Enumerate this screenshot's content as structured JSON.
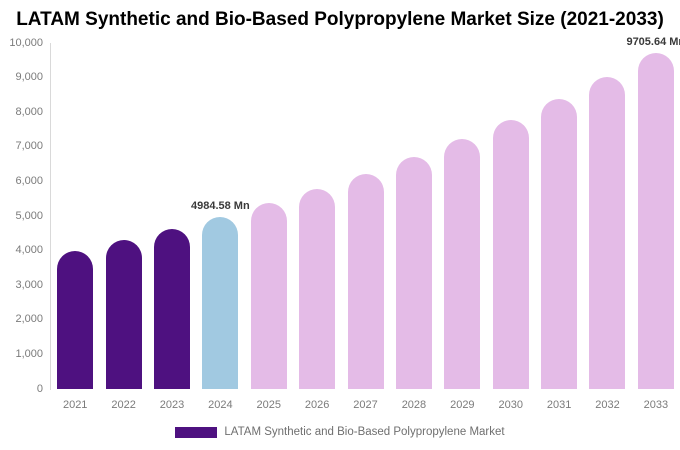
{
  "title": "LATAM Synthetic and Bio-Based Polypropylene Market Size (2021-2033)",
  "legend": {
    "label": "LATAM Synthetic and Bio-Based Polypropylene Market",
    "swatch_color": "#4E1180"
  },
  "colors": {
    "historical_bar": "#4E1180",
    "base_year_bar": "#A1C9E1",
    "forecast_bar": "#E4BBE7",
    "axis_line": "#D9D9D9",
    "tick_text": "#7B7B7B",
    "value_label_text": "#3A3A3A"
  },
  "chart_data": {
    "type": "bar",
    "title": "LATAM Synthetic and Bio-Based Polypropylene Market Size (2021-2033)",
    "unit": "Mn",
    "categories": [
      "2021",
      "2022",
      "2023",
      "2024",
      "2025",
      "2026",
      "2027",
      "2028",
      "2029",
      "2030",
      "2031",
      "2032",
      "2033"
    ],
    "values": [
      3991,
      4298,
      4629,
      4984.58,
      5368,
      5781,
      6226,
      6705,
      7220,
      7776,
      8374,
      9018,
      9705.64
    ],
    "bar_colors": [
      "#4E1180",
      "#4E1180",
      "#4E1180",
      "#A1C9E1",
      "#E4BBE7",
      "#E4BBE7",
      "#E4BBE7",
      "#E4BBE7",
      "#E4BBE7",
      "#E4BBE7",
      "#E4BBE7",
      "#E4BBE7",
      "#E4BBE7"
    ],
    "xlabel": "",
    "ylabel": "",
    "ylim": [
      0,
      10000
    ],
    "y_ticks": [
      "0",
      "1,000",
      "2,000",
      "3,000",
      "4,000",
      "5,000",
      "6,000",
      "7,000",
      "8,000",
      "9,000",
      "10,000"
    ],
    "grid": false,
    "legend_position": "bottom",
    "legend_entries": [
      "LATAM Synthetic and Bio-Based Polypropylene Market"
    ],
    "annotations": [
      {
        "index": 3,
        "text": "4984.58 Mn"
      },
      {
        "index": 12,
        "text": "9705.64 Mn"
      }
    ]
  }
}
